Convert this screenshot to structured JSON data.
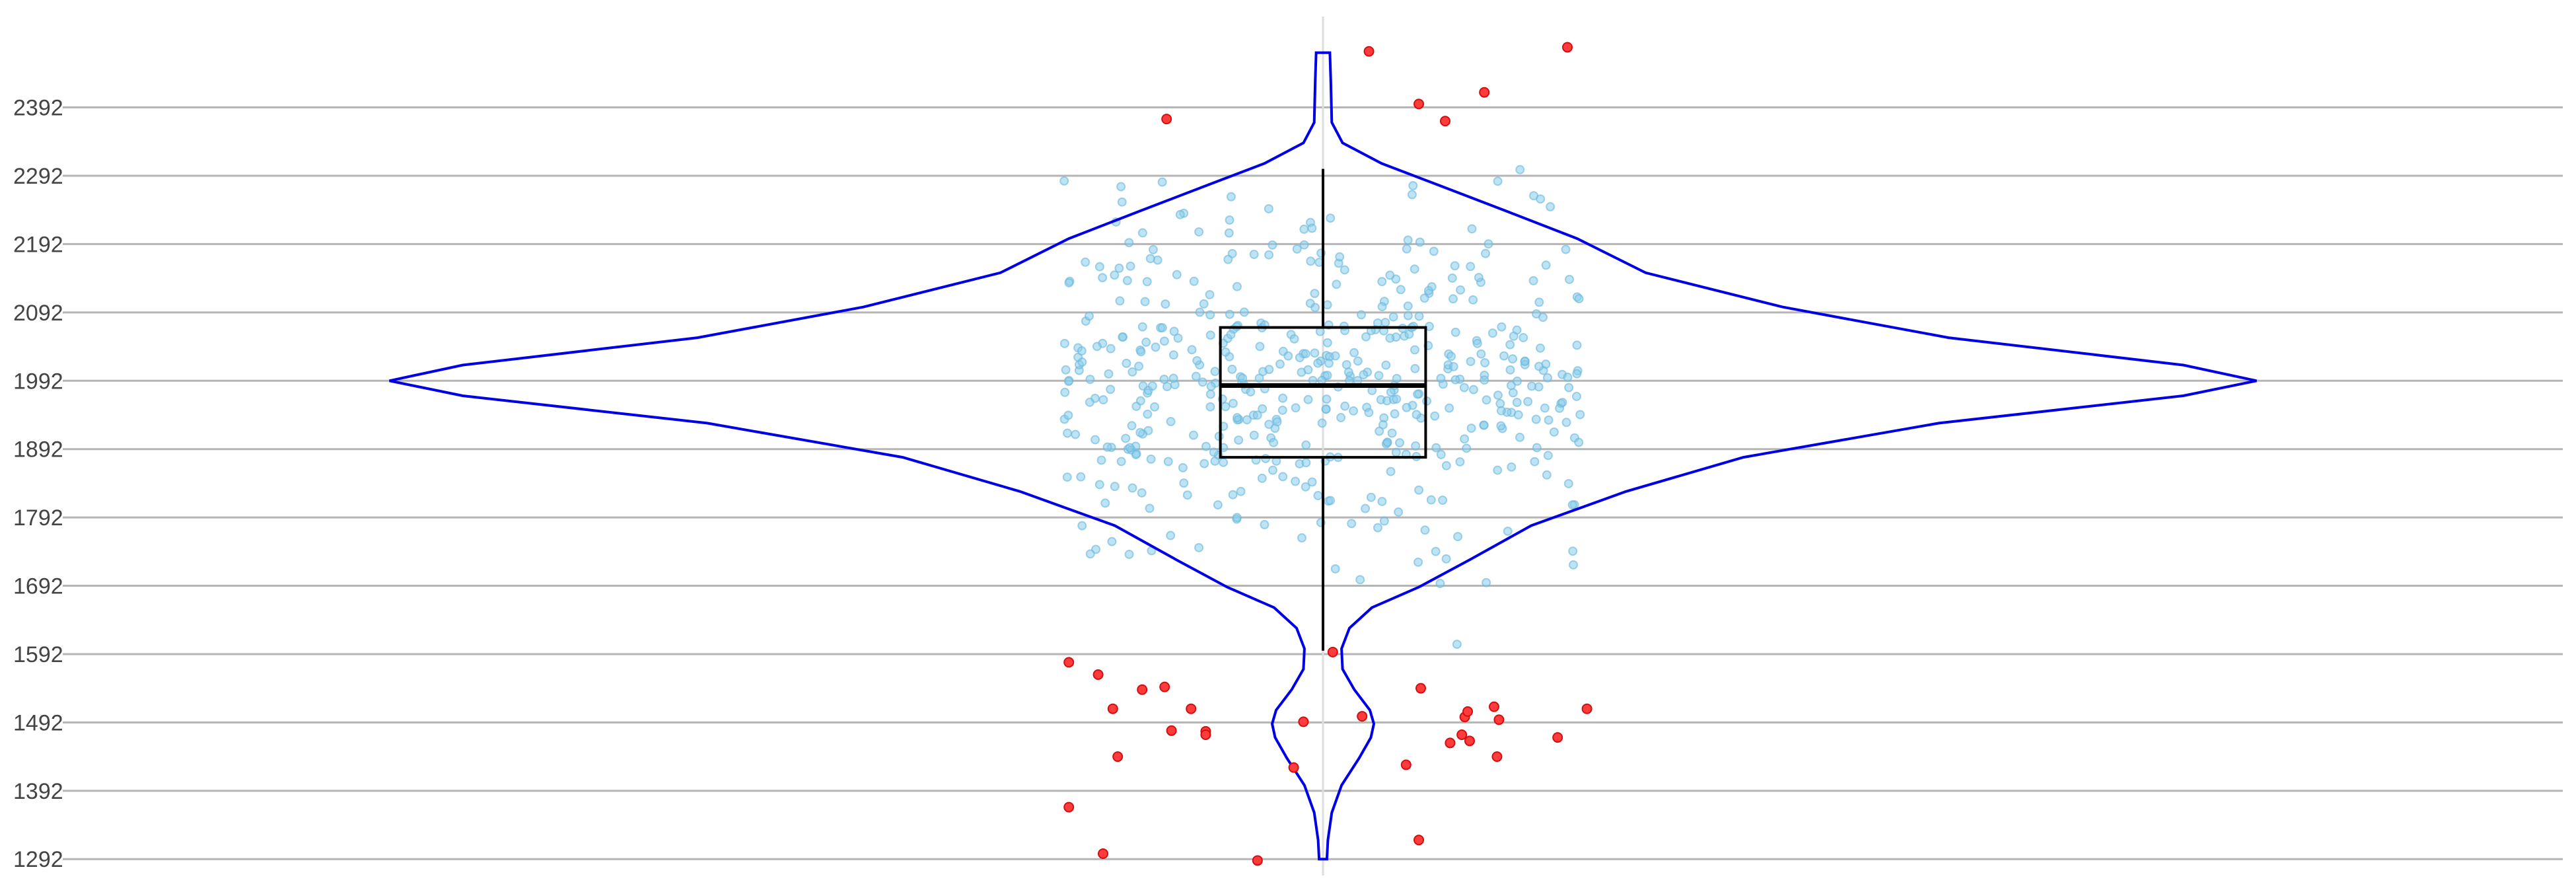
{
  "chart_data": {
    "type": "violin",
    "title": "",
    "xlabel": "",
    "ylabel": "",
    "ylim": [
      1270,
      2525
    ],
    "y_ticks": [
      1292,
      1392,
      1492,
      1592,
      1692,
      1792,
      1892,
      1992,
      2092,
      2192,
      2292,
      2392
    ],
    "grid": "horizontal",
    "colors": {
      "violin": "#0000e6",
      "box": "#000000",
      "inlier_fill": "#87ceeb",
      "inlier_stroke": "#6cb6da",
      "outlier_fill": "#ff3b3b",
      "outlier_stroke": "#d01010",
      "grid": "#b5b5b5"
    },
    "box": {
      "q1": 1880,
      "median": 1985,
      "q3": 2070,
      "whisker_low": 1597,
      "whisker_high": 2302
    },
    "violin_profile": [
      {
        "y": 1292,
        "half_width": 0.04
      },
      {
        "y": 1320,
        "half_width": 0.05
      },
      {
        "y": 1360,
        "half_width": 0.09
      },
      {
        "y": 1400,
        "half_width": 0.19
      },
      {
        "y": 1440,
        "half_width": 0.37
      },
      {
        "y": 1470,
        "half_width": 0.49
      },
      {
        "y": 1490,
        "half_width": 0.52
      },
      {
        "y": 1510,
        "half_width": 0.48
      },
      {
        "y": 1540,
        "half_width": 0.32
      },
      {
        "y": 1570,
        "half_width": 0.2
      },
      {
        "y": 1600,
        "half_width": 0.19
      },
      {
        "y": 1630,
        "half_width": 0.27
      },
      {
        "y": 1660,
        "half_width": 0.5
      },
      {
        "y": 1690,
        "half_width": 0.98
      },
      {
        "y": 1730,
        "half_width": 1.5
      },
      {
        "y": 1780,
        "half_width": 2.13
      },
      {
        "y": 1830,
        "half_width": 3.1
      },
      {
        "y": 1880,
        "half_width": 4.3
      },
      {
        "y": 1930,
        "half_width": 6.3
      },
      {
        "y": 1970,
        "half_width": 8.8
      },
      {
        "y": 1992,
        "half_width": 9.55
      },
      {
        "y": 2015,
        "half_width": 8.8
      },
      {
        "y": 2055,
        "half_width": 6.4
      },
      {
        "y": 2100,
        "half_width": 4.7
      },
      {
        "y": 2150,
        "half_width": 3.3
      },
      {
        "y": 2200,
        "half_width": 2.6
      },
      {
        "y": 2240,
        "half_width": 1.88
      },
      {
        "y": 2280,
        "half_width": 1.15
      },
      {
        "y": 2310,
        "half_width": 0.6
      },
      {
        "y": 2340,
        "half_width": 0.2
      },
      {
        "y": 2370,
        "half_width": 0.09
      },
      {
        "y": 2430,
        "half_width": 0.08
      },
      {
        "y": 2472,
        "half_width": 0.07
      }
    ],
    "outliers": [
      {
        "x": -2.6,
        "y": 1580
      },
      {
        "x": -2.6,
        "y": 1368
      },
      {
        "x": -2.25,
        "y": 1300
      },
      {
        "x": -2.3,
        "y": 1562
      },
      {
        "x": -2.15,
        "y": 1512
      },
      {
        "x": -2.1,
        "y": 1442
      },
      {
        "x": -1.85,
        "y": 1540
      },
      {
        "x": -1.62,
        "y": 1544
      },
      {
        "x": -1.55,
        "y": 1480
      },
      {
        "x": -1.35,
        "y": 1512
      },
      {
        "x": -1.2,
        "y": 1479
      },
      {
        "x": -1.2,
        "y": 1474
      },
      {
        "x": -1.6,
        "y": 2375
      },
      {
        "x": -0.67,
        "y": 1290
      },
      {
        "x": -0.3,
        "y": 1426
      },
      {
        "x": -0.2,
        "y": 1493
      },
      {
        "x": 0.1,
        "y": 1595
      },
      {
        "x": 0.4,
        "y": 1501
      },
      {
        "x": 0.47,
        "y": 2474
      },
      {
        "x": 0.85,
        "y": 1430
      },
      {
        "x": 0.98,
        "y": 1320
      },
      {
        "x": 1.0,
        "y": 1542
      },
      {
        "x": 0.98,
        "y": 2397
      },
      {
        "x": 1.25,
        "y": 2372
      },
      {
        "x": 1.3,
        "y": 1462
      },
      {
        "x": 1.42,
        "y": 1474
      },
      {
        "x": 1.45,
        "y": 1500
      },
      {
        "x": 1.48,
        "y": 1508
      },
      {
        "x": 1.5,
        "y": 1465
      },
      {
        "x": 1.65,
        "y": 2414
      },
      {
        "x": 1.75,
        "y": 1515
      },
      {
        "x": 1.8,
        "y": 1496
      },
      {
        "x": 1.78,
        "y": 1442
      },
      {
        "x": 2.4,
        "y": 1470
      },
      {
        "x": 2.5,
        "y": 2480
      },
      {
        "x": 2.7,
        "y": 1512
      }
    ],
    "inliers": {
      "count": 500,
      "y_mean": 1992,
      "y_sd": 120,
      "y_min": 1600,
      "y_max": 2310,
      "x_spread": 2.65
    }
  }
}
